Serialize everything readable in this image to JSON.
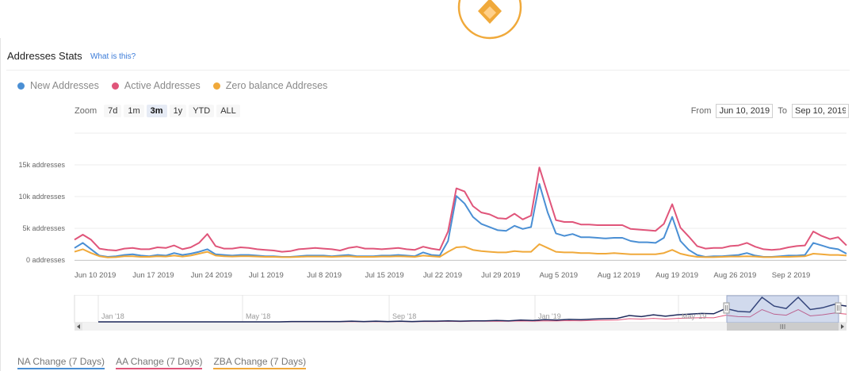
{
  "page": {
    "title": "Addresses Stats",
    "help_link": "What is this?"
  },
  "legend": [
    {
      "label": "New Addresses",
      "color": "#4a8fd4"
    },
    {
      "label": "Active Addresses",
      "color": "#e0557a"
    },
    {
      "label": "Zero balance Addreses",
      "color": "#f0a93a"
    }
  ],
  "zoom": {
    "label": "Zoom",
    "options": [
      "7d",
      "1m",
      "3m",
      "1y",
      "YTD",
      "ALL"
    ],
    "selected": "3m"
  },
  "range": {
    "from_label": "From",
    "from_value": "Jun 10, 2019",
    "to_label": "To",
    "to_value": "Sep 10, 2019"
  },
  "chart_data": {
    "type": "line",
    "x_tick_labels": [
      "Jun 10 2019",
      "Jun 17 2019",
      "Jun 24 2019",
      "Jul 1 2019",
      "Jul 8 2019",
      "Jul 15 2019",
      "Jul 22 2019",
      "Jul 29 2019",
      "Aug 5 2019",
      "Aug 12 2019",
      "Aug 19 2019",
      "Aug 26 2019",
      "Sep 2 2019"
    ],
    "y_tick_labels": [
      "0 addresses",
      "5k addresses",
      "10k addresses",
      "15k addresses"
    ],
    "y_ticks": [
      0,
      5000,
      10000,
      15000
    ],
    "ylim": [
      0,
      20000
    ],
    "grid": true,
    "x_start": "2019-06-10",
    "x_end": "2019-09-10",
    "series": [
      {
        "name": "New Addresses",
        "color": "#4a8fd4",
        "values": [
          1900,
          2700,
          1700,
          700,
          500,
          600,
          800,
          900,
          700,
          600,
          800,
          700,
          1100,
          800,
          1000,
          1300,
          1700,
          900,
          800,
          700,
          800,
          800,
          700,
          600,
          600,
          500,
          500,
          600,
          700,
          700,
          700,
          600,
          700,
          800,
          600,
          600,
          600,
          700,
          700,
          800,
          700,
          600,
          1200,
          800,
          700,
          3000,
          10100,
          8900,
          6800,
          5700,
          5200,
          4700,
          4600,
          5400,
          4900,
          5200,
          12000,
          7500,
          4200,
          3800,
          4100,
          3600,
          3600,
          3500,
          3400,
          3500,
          3500,
          3000,
          2800,
          2800,
          2700,
          3500,
          6800,
          3000,
          1600,
          800,
          500,
          600,
          600,
          700,
          800,
          1100,
          700,
          500,
          500,
          600,
          700,
          700,
          800,
          2700,
          2300,
          1900,
          1700,
          1000
        ]
      },
      {
        "name": "Active Addresses",
        "color": "#e0557a",
        "values": [
          3200,
          4000,
          3200,
          1800,
          1600,
          1500,
          1800,
          1900,
          1700,
          1700,
          2000,
          1900,
          2300,
          1700,
          2000,
          2700,
          4100,
          2200,
          1800,
          1800,
          2000,
          1900,
          1700,
          1600,
          1500,
          1300,
          1400,
          1700,
          1800,
          1900,
          1800,
          1700,
          1500,
          1900,
          2100,
          1800,
          1800,
          1700,
          1800,
          1900,
          1700,
          1600,
          2100,
          1800,
          1600,
          4500,
          11300,
          10800,
          8500,
          7500,
          7200,
          6600,
          6500,
          7300,
          6400,
          7000,
          14600,
          10400,
          6300,
          6000,
          6000,
          5600,
          5600,
          5500,
          5500,
          5500,
          5500,
          4900,
          4800,
          4700,
          4600,
          5700,
          8800,
          5100,
          3700,
          2200,
          1800,
          1900,
          1900,
          2200,
          2300,
          2700,
          2100,
          1700,
          1600,
          1700,
          2000,
          2200,
          2300,
          4500,
          3800,
          3300,
          3600,
          2300
        ]
      },
      {
        "name": "Zero balance Addreses",
        "color": "#f0a93a",
        "values": [
          1300,
          1700,
          1100,
          600,
          400,
          450,
          600,
          600,
          500,
          500,
          600,
          550,
          700,
          550,
          700,
          1000,
          1300,
          700,
          600,
          550,
          600,
          600,
          550,
          500,
          500,
          450,
          450,
          500,
          550,
          550,
          550,
          500,
          550,
          600,
          500,
          500,
          500,
          550,
          550,
          600,
          550,
          500,
          700,
          600,
          500,
          1300,
          2000,
          2100,
          1600,
          1400,
          1300,
          1200,
          1200,
          1400,
          1300,
          1300,
          2500,
          1900,
          1300,
          1200,
          1200,
          1100,
          1100,
          1000,
          1000,
          1100,
          1000,
          900,
          900,
          900,
          900,
          1100,
          1600,
          1000,
          700,
          500,
          450,
          450,
          500,
          550,
          550,
          600,
          550,
          450,
          450,
          500,
          500,
          550,
          600,
          1000,
          900,
          800,
          800,
          700
        ]
      }
    ],
    "navigator": {
      "tick_labels": [
        "Jan '18",
        "May '18",
        "Sep '18",
        "Jan '19",
        "May '19"
      ],
      "selected_range": [
        "Jun 10, 2019",
        "Sep 10, 2019"
      ],
      "dark_series": [
        0,
        0,
        0,
        0,
        0,
        0,
        0,
        0,
        0,
        0,
        0,
        0,
        0,
        0,
        0,
        0,
        100,
        100,
        100,
        100,
        100,
        200,
        100,
        200,
        100,
        200,
        100,
        200,
        200,
        300,
        200,
        300,
        300,
        400,
        300,
        500,
        400,
        600,
        500,
        700,
        600,
        800,
        900,
        1000,
        1800,
        1500,
        2000,
        1600,
        2000,
        2200,
        2400,
        2300,
        3800,
        3000,
        2800,
        7000,
        4500,
        3800,
        7000,
        3500,
        4000,
        5000,
        4500
      ],
      "light_series": [
        0,
        0,
        0,
        0,
        0,
        0,
        0,
        0,
        0,
        0,
        0,
        0,
        0,
        0,
        0,
        0,
        50,
        50,
        50,
        50,
        50,
        100,
        50,
        100,
        50,
        100,
        50,
        100,
        100,
        150,
        100,
        150,
        150,
        200,
        150,
        250,
        200,
        300,
        250,
        350,
        300,
        400,
        450,
        500,
        900,
        800,
        1000,
        800,
        1000,
        1100,
        1200,
        1150,
        1900,
        1500,
        1400,
        3500,
        2200,
        1900,
        3500,
        1700,
        2000,
        2500,
        2200
      ]
    }
  },
  "changes": [
    {
      "label": "NA Change (7 Days)",
      "color": "#4a8fd4"
    },
    {
      "label": "AA Change (7 Days)",
      "color": "#e0557a"
    },
    {
      "label": "ZBA Change (7 Days)",
      "color": "#f0a93a"
    }
  ]
}
